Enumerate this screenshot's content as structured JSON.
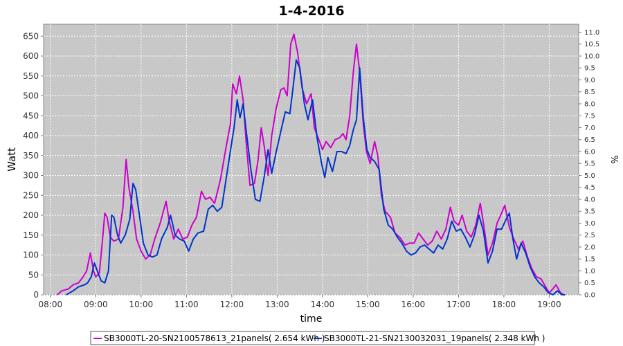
{
  "chart_data": {
    "type": "line",
    "title": "1-4-2016",
    "xlabel": "time",
    "ylabel": "Watt",
    "y2label": "%",
    "xlim": [
      7.85,
      19.65
    ],
    "ylim": [
      0,
      680
    ],
    "y2lim": [
      0,
      11.333
    ],
    "x_ticks": [
      {
        "v": 8,
        "label": "08:00"
      },
      {
        "v": 9,
        "label": "09:00"
      },
      {
        "v": 10,
        "label": "10:00"
      },
      {
        "v": 11,
        "label": "11:00"
      },
      {
        "v": 12,
        "label": "12:00"
      },
      {
        "v": 13,
        "label": "13:00"
      },
      {
        "v": 14,
        "label": "14:00"
      },
      {
        "v": 15,
        "label": "15:00"
      },
      {
        "v": 16,
        "label": "16:00"
      },
      {
        "v": 17,
        "label": "17:00"
      },
      {
        "v": 18,
        "label": "18:00"
      },
      {
        "v": 19,
        "label": "19:00"
      }
    ],
    "y_ticks": [
      0,
      50,
      100,
      150,
      200,
      250,
      300,
      350,
      400,
      450,
      500,
      550,
      600,
      650
    ],
    "y2_ticks": [
      "0.0",
      "0.5",
      "1.0",
      "1.5",
      "2.0",
      "2.5",
      "3.0",
      "3.5",
      "4.0",
      "4.5",
      "5.0",
      "5.5",
      "6.0",
      "6.5",
      "7.0",
      "7.5",
      "8.0",
      "8.5",
      "9.0",
      "9.5",
      "10.0",
      "10.5",
      "11.0"
    ],
    "grid": true,
    "legend_position": "bottom",
    "series": [
      {
        "name": "SB3000TL-20-SN2100578613_21panels( 2.654 kWh )",
        "color": "#cc00cc",
        "points": [
          [
            8.15,
            0
          ],
          [
            8.25,
            10
          ],
          [
            8.4,
            15
          ],
          [
            8.5,
            25
          ],
          [
            8.62,
            30
          ],
          [
            8.72,
            45
          ],
          [
            8.8,
            60
          ],
          [
            8.88,
            105
          ],
          [
            8.95,
            60
          ],
          [
            9.0,
            45
          ],
          [
            9.08,
            55
          ],
          [
            9.15,
            140
          ],
          [
            9.2,
            205
          ],
          [
            9.25,
            195
          ],
          [
            9.32,
            145
          ],
          [
            9.4,
            135
          ],
          [
            9.5,
            140
          ],
          [
            9.6,
            220
          ],
          [
            9.67,
            340
          ],
          [
            9.73,
            270
          ],
          [
            9.82,
            210
          ],
          [
            9.9,
            140
          ],
          [
            10.0,
            110
          ],
          [
            10.1,
            90
          ],
          [
            10.2,
            100
          ],
          [
            10.3,
            140
          ],
          [
            10.42,
            180
          ],
          [
            10.55,
            235
          ],
          [
            10.62,
            185
          ],
          [
            10.72,
            140
          ],
          [
            10.82,
            165
          ],
          [
            10.92,
            140
          ],
          [
            11.02,
            145
          ],
          [
            11.12,
            175
          ],
          [
            11.22,
            195
          ],
          [
            11.33,
            260
          ],
          [
            11.42,
            240
          ],
          [
            11.52,
            245
          ],
          [
            11.62,
            230
          ],
          [
            11.75,
            290
          ],
          [
            11.88,
            375
          ],
          [
            11.97,
            430
          ],
          [
            12.02,
            530
          ],
          [
            12.1,
            505
          ],
          [
            12.17,
            550
          ],
          [
            12.25,
            490
          ],
          [
            12.32,
            380
          ],
          [
            12.4,
            275
          ],
          [
            12.5,
            280
          ],
          [
            12.58,
            340
          ],
          [
            12.65,
            420
          ],
          [
            12.72,
            370
          ],
          [
            12.8,
            300
          ],
          [
            12.88,
            400
          ],
          [
            12.98,
            470
          ],
          [
            13.08,
            515
          ],
          [
            13.15,
            520
          ],
          [
            13.22,
            500
          ],
          [
            13.3,
            630
          ],
          [
            13.37,
            655
          ],
          [
            13.45,
            610
          ],
          [
            13.55,
            520
          ],
          [
            13.65,
            480
          ],
          [
            13.75,
            505
          ],
          [
            13.82,
            420
          ],
          [
            13.92,
            390
          ],
          [
            14.0,
            365
          ],
          [
            14.08,
            385
          ],
          [
            14.18,
            370
          ],
          [
            14.28,
            390
          ],
          [
            14.38,
            395
          ],
          [
            14.45,
            405
          ],
          [
            14.52,
            390
          ],
          [
            14.6,
            450
          ],
          [
            14.68,
            560
          ],
          [
            14.75,
            630
          ],
          [
            14.82,
            560
          ],
          [
            14.9,
            430
          ],
          [
            14.97,
            360
          ],
          [
            15.05,
            330
          ],
          [
            15.15,
            385
          ],
          [
            15.22,
            350
          ],
          [
            15.3,
            250
          ],
          [
            15.38,
            210
          ],
          [
            15.5,
            195
          ],
          [
            15.6,
            155
          ],
          [
            15.7,
            145
          ],
          [
            15.82,
            125
          ],
          [
            15.92,
            130
          ],
          [
            16.02,
            130
          ],
          [
            16.12,
            155
          ],
          [
            16.22,
            140
          ],
          [
            16.32,
            125
          ],
          [
            16.42,
            135
          ],
          [
            16.52,
            160
          ],
          [
            16.62,
            140
          ],
          [
            16.72,
            165
          ],
          [
            16.82,
            220
          ],
          [
            16.9,
            185
          ],
          [
            17.0,
            175
          ],
          [
            17.08,
            200
          ],
          [
            17.18,
            160
          ],
          [
            17.28,
            145
          ],
          [
            17.38,
            175
          ],
          [
            17.48,
            230
          ],
          [
            17.55,
            180
          ],
          [
            17.65,
            100
          ],
          [
            17.75,
            130
          ],
          [
            17.85,
            180
          ],
          [
            17.95,
            205
          ],
          [
            18.02,
            225
          ],
          [
            18.12,
            170
          ],
          [
            18.22,
            140
          ],
          [
            18.32,
            115
          ],
          [
            18.42,
            135
          ],
          [
            18.52,
            95
          ],
          [
            18.62,
            65
          ],
          [
            18.72,
            45
          ],
          [
            18.82,
            40
          ],
          [
            18.92,
            20
          ],
          [
            19.0,
            5
          ],
          [
            19.08,
            15
          ],
          [
            19.15,
            25
          ],
          [
            19.25,
            5
          ],
          [
            19.32,
            0
          ]
        ]
      },
      {
        "name": "SB3000TL-21-SN2130032031_19panels( 2.348 kWh )",
        "color": "#0033cc",
        "points": [
          [
            8.35,
            0
          ],
          [
            8.5,
            10
          ],
          [
            8.62,
            20
          ],
          [
            8.75,
            25
          ],
          [
            8.82,
            30
          ],
          [
            8.9,
            45
          ],
          [
            8.97,
            80
          ],
          [
            9.05,
            55
          ],
          [
            9.12,
            35
          ],
          [
            9.2,
            30
          ],
          [
            9.28,
            60
          ],
          [
            9.35,
            200
          ],
          [
            9.4,
            195
          ],
          [
            9.48,
            150
          ],
          [
            9.55,
            130
          ],
          [
            9.65,
            150
          ],
          [
            9.75,
            190
          ],
          [
            9.82,
            280
          ],
          [
            9.88,
            265
          ],
          [
            9.95,
            210
          ],
          [
            10.05,
            130
          ],
          [
            10.15,
            100
          ],
          [
            10.25,
            95
          ],
          [
            10.35,
            100
          ],
          [
            10.45,
            140
          ],
          [
            10.58,
            170
          ],
          [
            10.65,
            200
          ],
          [
            10.75,
            150
          ],
          [
            10.85,
            140
          ],
          [
            10.95,
            135
          ],
          [
            11.05,
            110
          ],
          [
            11.15,
            140
          ],
          [
            11.25,
            155
          ],
          [
            11.38,
            160
          ],
          [
            11.48,
            215
          ],
          [
            11.58,
            225
          ],
          [
            11.68,
            210
          ],
          [
            11.78,
            220
          ],
          [
            11.88,
            295
          ],
          [
            11.98,
            370
          ],
          [
            12.05,
            420
          ],
          [
            12.12,
            490
          ],
          [
            12.18,
            445
          ],
          [
            12.25,
            480
          ],
          [
            12.32,
            410
          ],
          [
            12.42,
            315
          ],
          [
            12.52,
            240
          ],
          [
            12.62,
            235
          ],
          [
            12.72,
            300
          ],
          [
            12.8,
            365
          ],
          [
            12.88,
            305
          ],
          [
            12.98,
            360
          ],
          [
            13.08,
            410
          ],
          [
            13.18,
            460
          ],
          [
            13.28,
            455
          ],
          [
            13.35,
            520
          ],
          [
            13.42,
            590
          ],
          [
            13.5,
            570
          ],
          [
            13.6,
            480
          ],
          [
            13.68,
            440
          ],
          [
            13.78,
            490
          ],
          [
            13.88,
            395
          ],
          [
            13.98,
            330
          ],
          [
            14.05,
            295
          ],
          [
            14.12,
            345
          ],
          [
            14.22,
            310
          ],
          [
            14.32,
            360
          ],
          [
            14.42,
            360
          ],
          [
            14.52,
            355
          ],
          [
            14.6,
            375
          ],
          [
            14.68,
            415
          ],
          [
            14.75,
            440
          ],
          [
            14.82,
            570
          ],
          [
            14.9,
            445
          ],
          [
            14.98,
            365
          ],
          [
            15.05,
            345
          ],
          [
            15.15,
            335
          ],
          [
            15.25,
            315
          ],
          [
            15.35,
            215
          ],
          [
            15.45,
            175
          ],
          [
            15.55,
            165
          ],
          [
            15.65,
            145
          ],
          [
            15.75,
            130
          ],
          [
            15.85,
            110
          ],
          [
            15.95,
            100
          ],
          [
            16.05,
            105
          ],
          [
            16.15,
            120
          ],
          [
            16.25,
            125
          ],
          [
            16.35,
            115
          ],
          [
            16.45,
            105
          ],
          [
            16.55,
            125
          ],
          [
            16.65,
            115
          ],
          [
            16.75,
            140
          ],
          [
            16.85,
            185
          ],
          [
            16.95,
            160
          ],
          [
            17.05,
            165
          ],
          [
            17.15,
            145
          ],
          [
            17.25,
            120
          ],
          [
            17.35,
            150
          ],
          [
            17.45,
            200
          ],
          [
            17.55,
            160
          ],
          [
            17.65,
            80
          ],
          [
            17.75,
            110
          ],
          [
            17.85,
            165
          ],
          [
            17.95,
            165
          ],
          [
            18.05,
            190
          ],
          [
            18.12,
            205
          ],
          [
            18.2,
            140
          ],
          [
            18.28,
            90
          ],
          [
            18.38,
            130
          ],
          [
            18.48,
            105
          ],
          [
            18.58,
            70
          ],
          [
            18.68,
            45
          ],
          [
            18.78,
            30
          ],
          [
            18.88,
            20
          ],
          [
            18.98,
            5
          ],
          [
            19.08,
            0
          ],
          [
            19.18,
            10
          ],
          [
            19.28,
            0
          ],
          [
            19.35,
            0
          ]
        ]
      }
    ]
  }
}
